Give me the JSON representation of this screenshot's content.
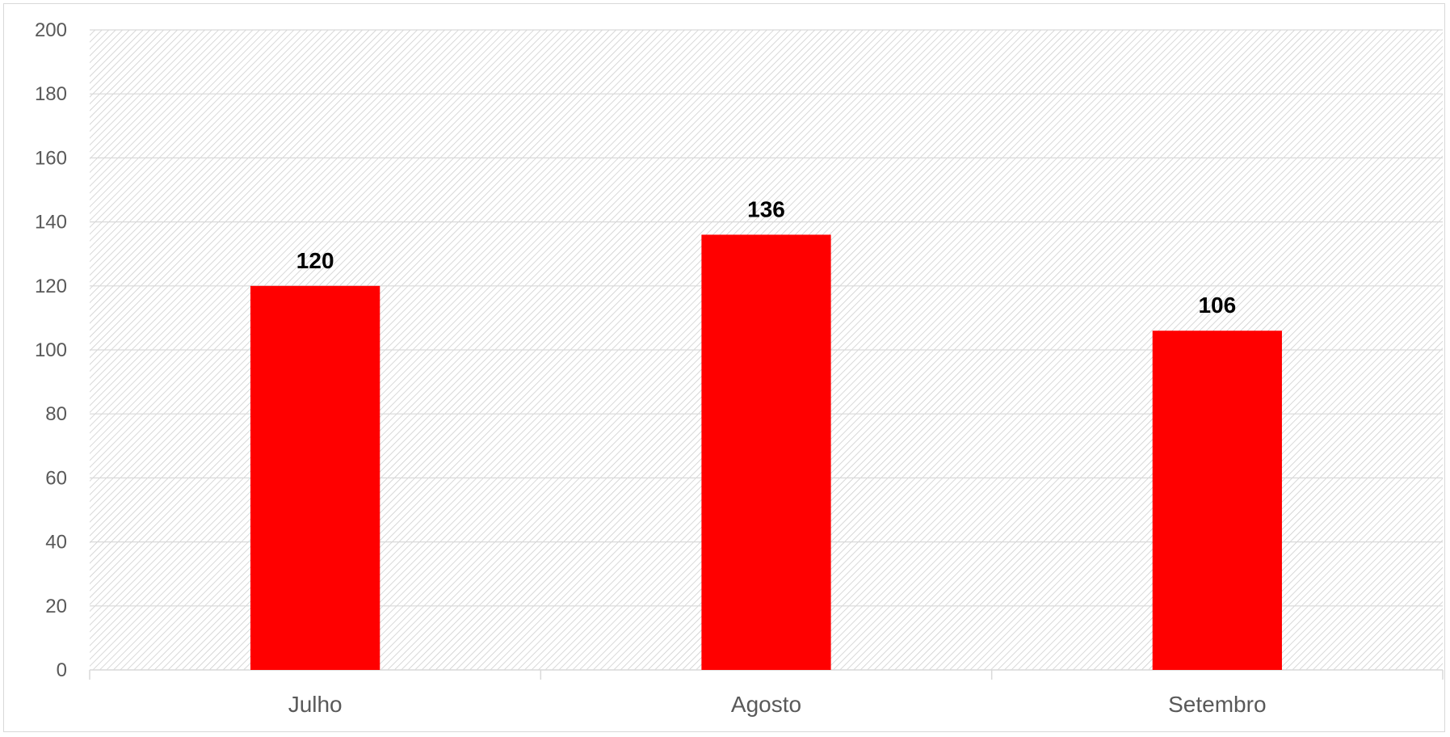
{
  "chart_data": {
    "type": "bar",
    "categories": [
      "Julho",
      "Agosto",
      "Setembro"
    ],
    "series": [
      {
        "values": [
          120,
          136,
          106
        ],
        "color": "#ff0000"
      }
    ],
    "data_labels": [
      "120",
      "136",
      "106"
    ],
    "ylim": [
      0,
      200
    ],
    "yticks": [
      0,
      20,
      40,
      60,
      80,
      100,
      120,
      140,
      160,
      180,
      200
    ],
    "ytick_labels": [
      "0",
      "20",
      "40",
      "60",
      "80",
      "100",
      "120",
      "140",
      "160",
      "180",
      "200"
    ],
    "title": "",
    "xlabel": "",
    "ylabel": "",
    "grid": true,
    "legend": "none",
    "plot_background": "hatched-light-gray",
    "gridline_color": "#d9d9d9",
    "label_color": "#595959"
  }
}
